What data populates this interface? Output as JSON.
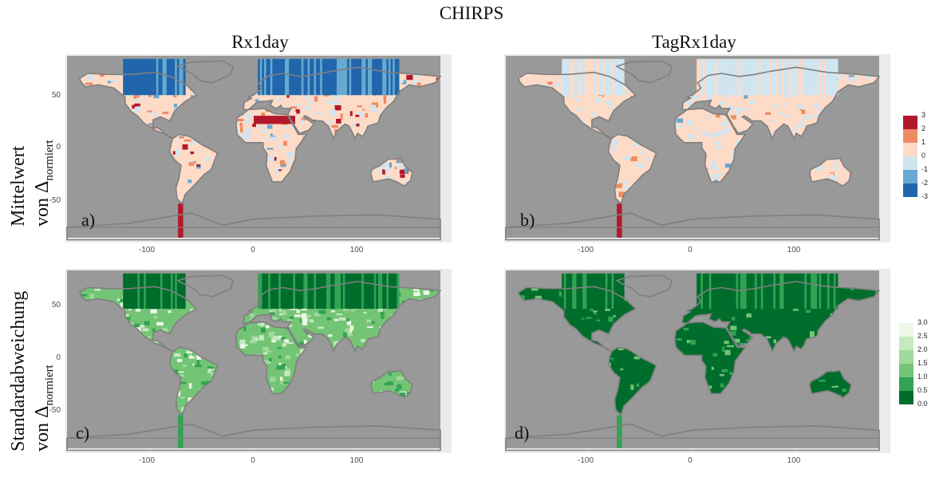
{
  "figure_title": "CHIRPS",
  "column_titles": [
    "Rx1day",
    "TagRx1day"
  ],
  "row_labels": [
    {
      "line1": "Mittelwert",
      "line2_prefix": "von Δ",
      "line2_sub": "normiert"
    },
    {
      "line1": "Standardabweichung",
      "line2_prefix": "von Δ",
      "line2_sub": "normiert"
    }
  ],
  "panel_labels": [
    "a)",
    "b)",
    "c)",
    "d)"
  ],
  "axes": {
    "x_ticks": [
      "-100",
      "0",
      "100"
    ],
    "y_ticks": [
      "50",
      "0",
      "-50"
    ]
  },
  "legend_mean": {
    "labels": [
      "3",
      "2",
      "1",
      "0",
      "-1",
      "-2",
      "-3"
    ],
    "colors": [
      "#b2182b",
      "#ef8a62",
      "#fddbc7",
      "#d1e5f0",
      "#67a9cf",
      "#2166ac"
    ]
  },
  "legend_std": {
    "labels": [
      "3.0",
      "2.5",
      "2.0",
      "1.5",
      "1.0",
      "0.5",
      "0.0"
    ],
    "colors": [
      "#edf8e9",
      "#c7e9c0",
      "#a1d99b",
      "#74c476",
      "#31a354",
      "#006d2c"
    ]
  }
}
